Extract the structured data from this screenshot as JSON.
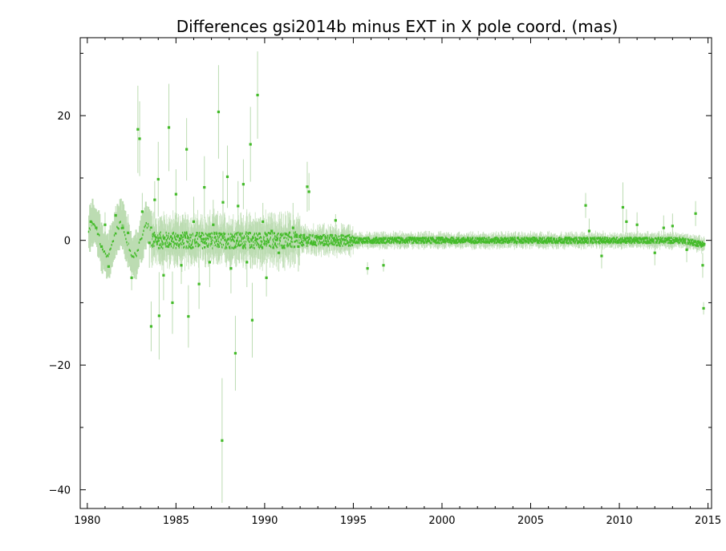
{
  "chart_data": {
    "type": "scatter",
    "title": "Differences gsi2014b minus EXT in X pole coord. (mas)",
    "xlabel": "",
    "ylabel": "",
    "xlim": [
      1979.6,
      2015.2
    ],
    "ylim": [
      -43,
      32.5
    ],
    "x_ticks": [
      1980,
      1985,
      1990,
      1995,
      2000,
      2005,
      2010,
      2015
    ],
    "x_tick_labels": [
      "1980",
      "1985",
      "1990",
      "1995",
      "2000",
      "2005",
      "2010",
      "2015"
    ],
    "y_ticks": [
      -40,
      -20,
      0,
      20
    ],
    "y_tick_labels": [
      "−40",
      "−20",
      "0",
      "20"
    ],
    "grid": false,
    "colors": {
      "point": "#44bb2a",
      "error_bar": "#bcdcb2",
      "axis": "#000000"
    },
    "series": [
      {
        "marker": "dot",
        "points": [
          {
            "x": 1980.2,
            "y": 3.0,
            "err": 3.0
          },
          {
            "x": 1980.5,
            "y": 2.0,
            "err": 2.5
          },
          {
            "x": 1980.8,
            "y": -1.0,
            "err": 2.5
          },
          {
            "x": 1981.0,
            "y": 2.5,
            "err": 2.0
          },
          {
            "x": 1981.2,
            "y": -4.2,
            "err": 1.5
          },
          {
            "x": 1981.6,
            "y": 4.0,
            "err": 1.5
          },
          {
            "x": 1982.0,
            "y": 2.0,
            "err": 2.0
          },
          {
            "x": 1982.3,
            "y": 1.2,
            "err": 3.0
          },
          {
            "x": 1982.5,
            "y": -6.0,
            "err": 2.0
          },
          {
            "x": 1982.85,
            "y": 17.8,
            "err": 7.0
          },
          {
            "x": 1982.95,
            "y": 16.3,
            "err": 6.0
          },
          {
            "x": 1983.1,
            "y": 4.6,
            "err": 3.0
          },
          {
            "x": 1983.5,
            "y": -0.4,
            "err": 4.0
          },
          {
            "x": 1983.6,
            "y": -13.8,
            "err": 4.0
          },
          {
            "x": 1983.8,
            "y": 6.5,
            "err": 3.0
          },
          {
            "x": 1984.0,
            "y": 9.8,
            "err": 6.0
          },
          {
            "x": 1984.05,
            "y": -12.1,
            "err": 7.0
          },
          {
            "x": 1984.3,
            "y": -5.6,
            "err": 4.0
          },
          {
            "x": 1984.6,
            "y": 18.1,
            "err": 7.0
          },
          {
            "x": 1984.8,
            "y": -10.0,
            "err": 5.0
          },
          {
            "x": 1985.0,
            "y": 7.4,
            "err": 4.0
          },
          {
            "x": 1985.3,
            "y": -4.0,
            "err": 3.0
          },
          {
            "x": 1985.6,
            "y": 14.6,
            "err": 5.0
          },
          {
            "x": 1985.7,
            "y": -12.2,
            "err": 5.0
          },
          {
            "x": 1986.0,
            "y": 3.0,
            "err": 4.0
          },
          {
            "x": 1986.3,
            "y": -7.0,
            "err": 4.0
          },
          {
            "x": 1986.6,
            "y": 8.5,
            "err": 5.0
          },
          {
            "x": 1986.9,
            "y": -3.5,
            "err": 4.0
          },
          {
            "x": 1987.1,
            "y": 2.5,
            "err": 4.0
          },
          {
            "x": 1987.4,
            "y": 20.6,
            "err": 7.5
          },
          {
            "x": 1987.6,
            "y": -32.1,
            "err": 10.0
          },
          {
            "x": 1987.65,
            "y": 6.1,
            "err": 5.0
          },
          {
            "x": 1987.9,
            "y": 10.2,
            "err": 5.0
          },
          {
            "x": 1988.1,
            "y": -4.5,
            "err": 4.0
          },
          {
            "x": 1988.35,
            "y": -18.1,
            "err": 6.0
          },
          {
            "x": 1988.5,
            "y": 5.5,
            "err": 4.0
          },
          {
            "x": 1988.8,
            "y": 9.0,
            "err": 4.0
          },
          {
            "x": 1989.0,
            "y": -3.5,
            "err": 4.0
          },
          {
            "x": 1989.2,
            "y": 15.4,
            "err": 6.0
          },
          {
            "x": 1989.3,
            "y": -12.8,
            "err": 6.0
          },
          {
            "x": 1989.6,
            "y": 23.3,
            "err": 7.0
          },
          {
            "x": 1989.9,
            "y": 3.0,
            "err": 3.0
          },
          {
            "x": 1990.1,
            "y": -6.0,
            "err": 3.0
          },
          {
            "x": 1990.4,
            "y": 1.5,
            "err": 3.0
          },
          {
            "x": 1990.8,
            "y": -2.0,
            "err": 3.0
          },
          {
            "x": 1991.2,
            "y": 1.0,
            "err": 3.0
          },
          {
            "x": 1991.6,
            "y": 2.0,
            "err": 4.0
          },
          {
            "x": 1991.9,
            "y": -1.0,
            "err": 4.0
          },
          {
            "x": 1992.4,
            "y": 8.6,
            "err": 4.0
          },
          {
            "x": 1992.5,
            "y": 7.8,
            "err": 3.0
          },
          {
            "x": 1993.0,
            "y": 0.5,
            "err": 2.0
          },
          {
            "x": 1994.0,
            "y": 3.2,
            "err": 1.0
          },
          {
            "x": 1995.8,
            "y": -4.5,
            "err": 1.0
          },
          {
            "x": 1996.7,
            "y": -4.0,
            "err": 1.0
          },
          {
            "x": 2008.1,
            "y": 5.6,
            "err": 2.0
          },
          {
            "x": 2008.3,
            "y": 1.5,
            "err": 2.0
          },
          {
            "x": 2009.0,
            "y": -2.5,
            "err": 2.0
          },
          {
            "x": 2010.2,
            "y": 5.3,
            "err": 4.0
          },
          {
            "x": 2010.4,
            "y": 3.0,
            "err": 2.0
          },
          {
            "x": 2011.0,
            "y": 2.5,
            "err": 2.0
          },
          {
            "x": 2012.0,
            "y": -2.0,
            "err": 2.0
          },
          {
            "x": 2012.5,
            "y": 2.0,
            "err": 2.0
          },
          {
            "x": 2013.0,
            "y": 2.3,
            "err": 2.0
          },
          {
            "x": 2013.8,
            "y": -1.5,
            "err": 2.0
          },
          {
            "x": 2014.3,
            "y": 4.3,
            "err": 2.0
          },
          {
            "x": 2014.7,
            "y": -4.0,
            "err": 2.0
          },
          {
            "x": 2014.75,
            "y": -10.9,
            "err": 1.0
          }
        ]
      }
    ]
  }
}
